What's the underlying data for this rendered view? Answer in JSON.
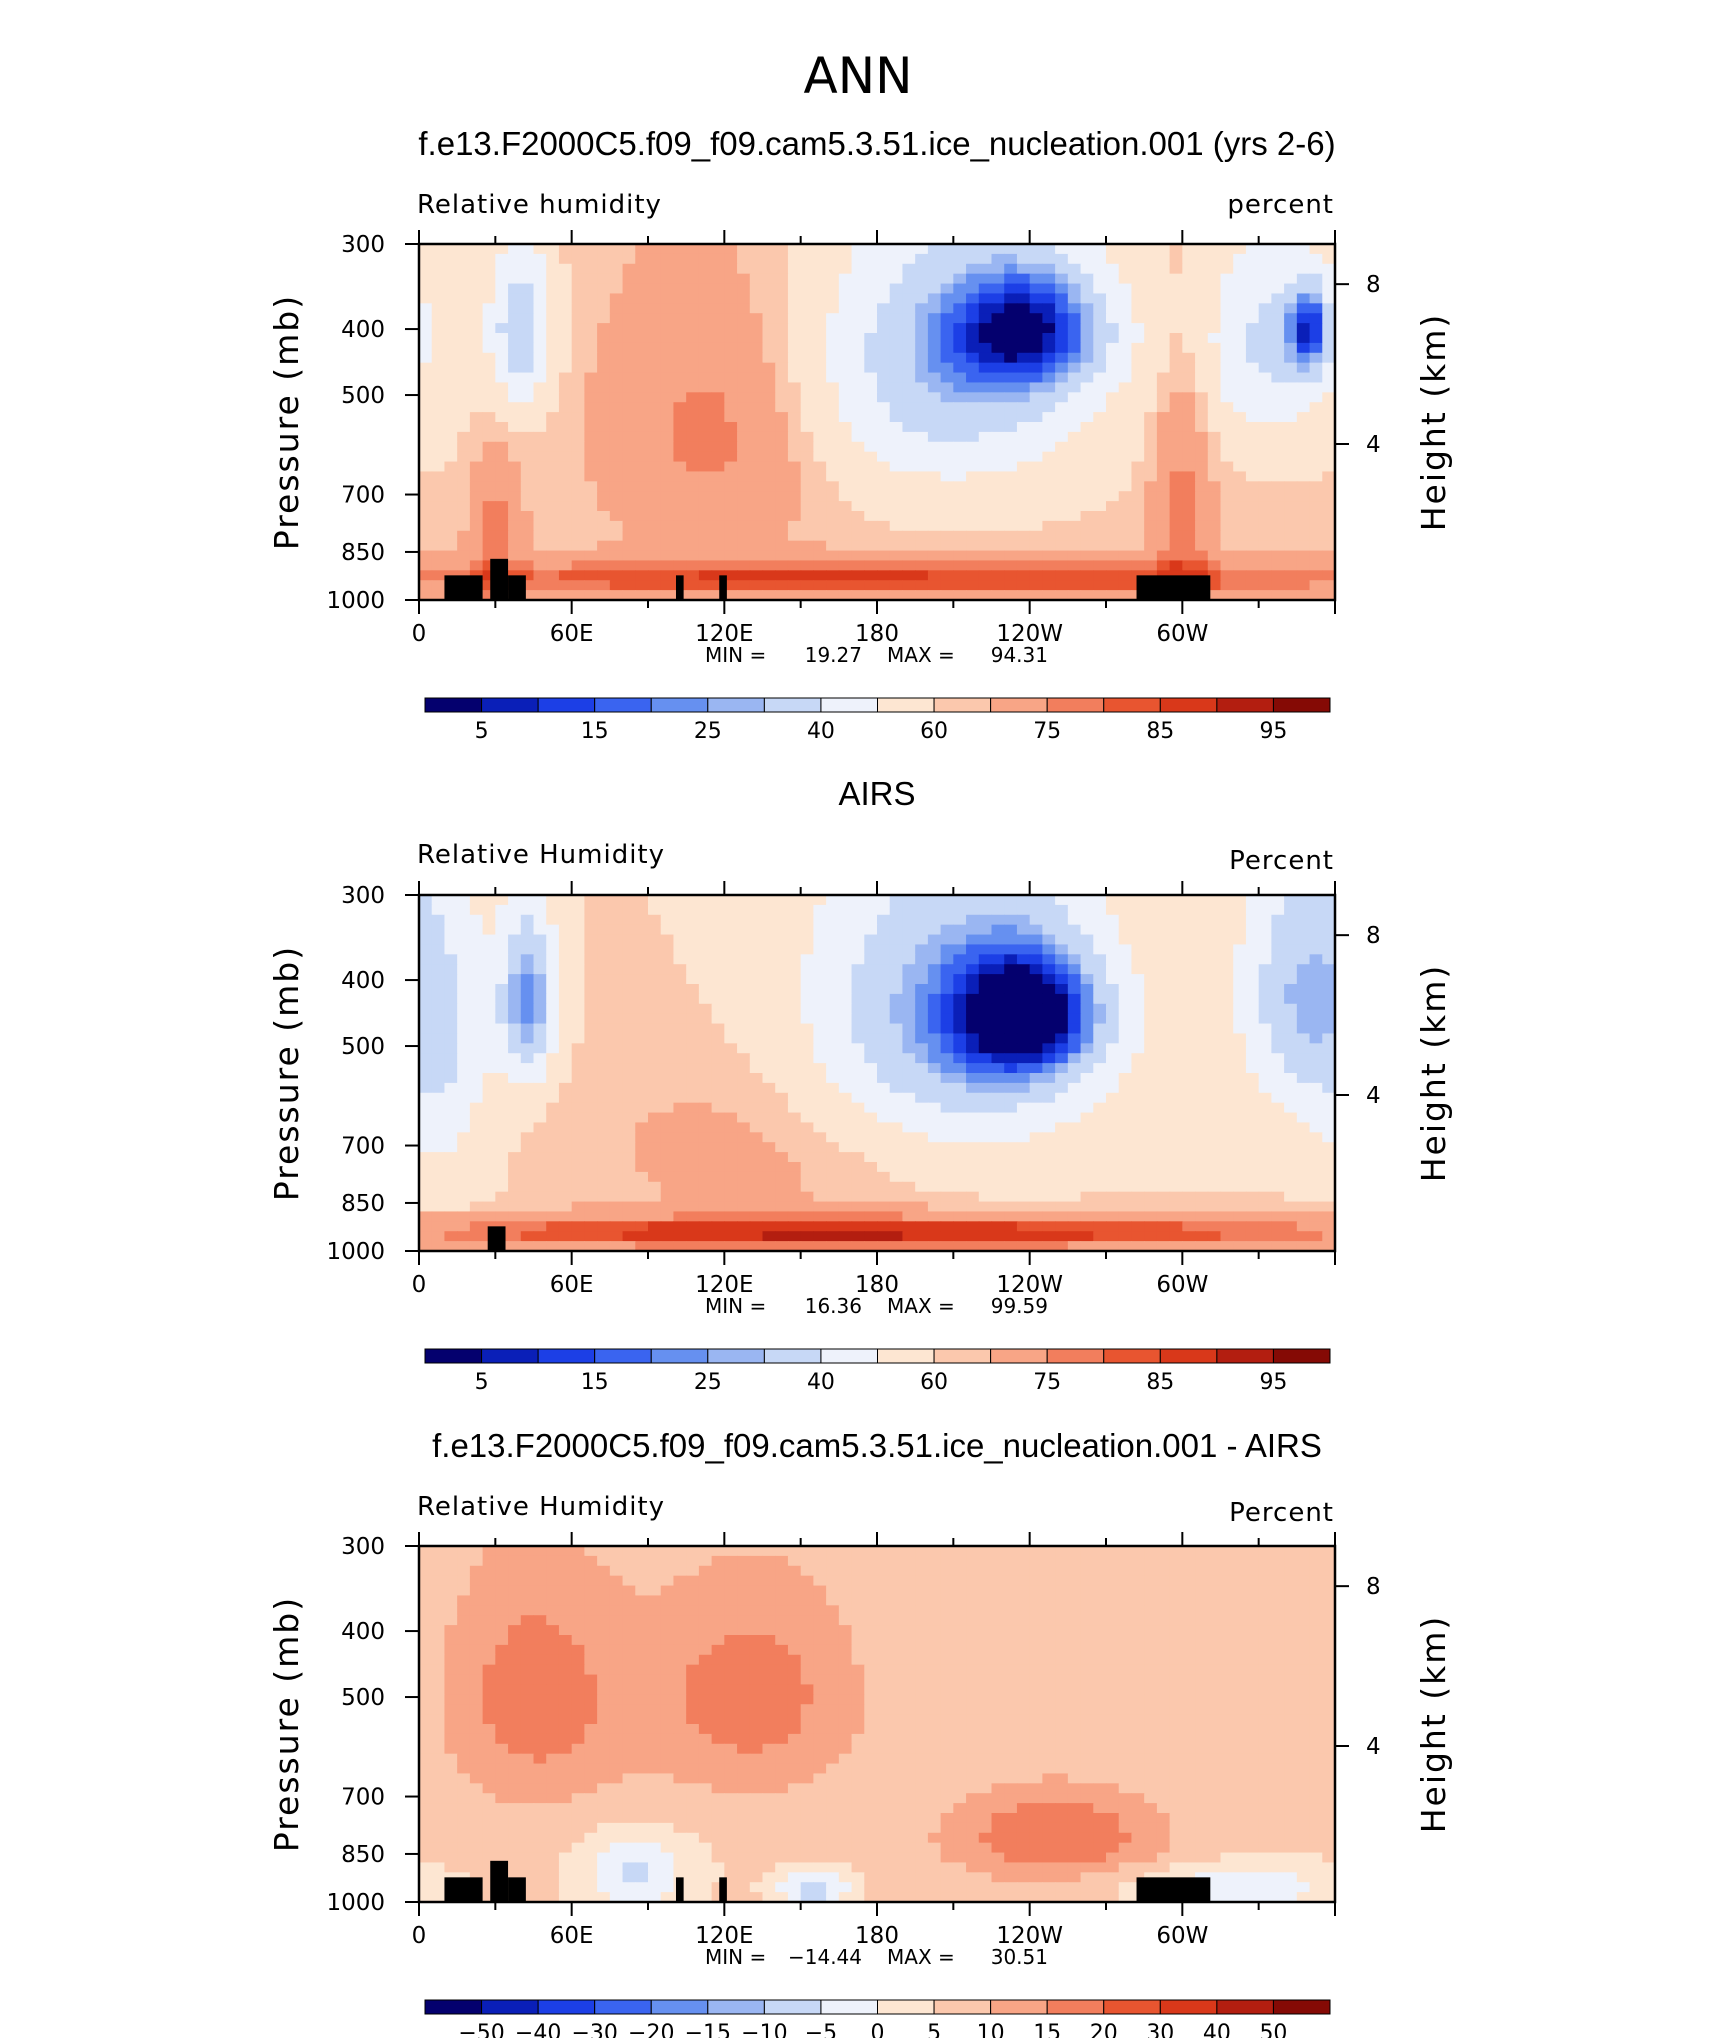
{
  "figure": {
    "title": "ANN"
  },
  "chart_data": [
    {
      "type": "heatmap",
      "title": "f.e13.F2000C5.f09_f09.cam5.3.51.ice_nucleation.001 (yrs 2-6)",
      "left_label": "Relative humidity",
      "right_label": "percent",
      "ylabel": "Pressure (mb)",
      "ylabel2": "Height (km)",
      "xticks": [
        "0",
        "60E",
        "120E",
        "180",
        "120W",
        "60W"
      ],
      "yticks": [
        "300",
        "400",
        "500",
        "700",
        "850",
        "1000"
      ],
      "y2ticks": [
        "8",
        "4"
      ],
      "stats": {
        "min_label": "MIN =",
        "min": "19.27",
        "max_label": "MAX =",
        "max": "94.31"
      },
      "colorbar_labels": [
        "5",
        "15",
        "25",
        "40",
        "60",
        "75",
        "85",
        "95"
      ],
      "colorbar_colors": [
        "#04006e",
        "#0a1fb8",
        "#1c3fe6",
        "#3a64f0",
        "#6690f0",
        "#9ab6f2",
        "#c7d8f6",
        "#eef2fb",
        "#fde6d2",
        "#fbc8ad",
        "#f8a586",
        "#f27e5d",
        "#e85530",
        "#d9381a",
        "#b31e10",
        "#850a05"
      ],
      "ylim": [
        1000,
        300
      ],
      "xlim": [
        0,
        360
      ],
      "blobs": [
        {
          "x": 20,
          "p": 550,
          "v": 60,
          "sx": 18,
          "sp": 150
        },
        {
          "x": 40,
          "p": 400,
          "v": 32,
          "sx": 9,
          "sp": 80
        },
        {
          "x": 30,
          "p": 780,
          "v": 78,
          "sx": 7,
          "sp": 140
        },
        {
          "x": 115,
          "p": 560,
          "v": 78,
          "sx": 28,
          "sp": 170
        },
        {
          "x": 210,
          "p": 450,
          "v": 30,
          "sx": 40,
          "sp": 150
        },
        {
          "x": 240,
          "p": 400,
          "v": 22,
          "sx": 22,
          "sp": 60
        },
        {
          "x": 300,
          "p": 700,
          "v": 78,
          "sx": 8,
          "sp": 220
        },
        {
          "x": 335,
          "p": 420,
          "v": 38,
          "sx": 20,
          "sp": 110
        },
        {
          "x": 350,
          "p": 400,
          "v": 25,
          "sx": 6,
          "sp": 40
        },
        {
          "x": 180,
          "p": 930,
          "v": 86,
          "sx": 170,
          "sp": 45
        }
      ],
      "base": 62,
      "topography": [
        [
          10,
          25,
          1000,
          920
        ],
        [
          28,
          35,
          1000,
          870
        ],
        [
          35,
          42,
          1000,
          920
        ],
        [
          101,
          104,
          1000,
          920
        ],
        [
          118,
          121,
          1000,
          920
        ],
        [
          282,
          311,
          1000,
          920
        ]
      ]
    },
    {
      "type": "heatmap",
      "title": "AIRS",
      "left_label": "Relative Humidity",
      "right_label": "Percent",
      "ylabel": "Pressure (mb)",
      "ylabel2": "Height (km)",
      "xticks": [
        "0",
        "60E",
        "120E",
        "180",
        "120W",
        "60W"
      ],
      "yticks": [
        "300",
        "400",
        "500",
        "700",
        "850",
        "1000"
      ],
      "y2ticks": [
        "8",
        "4"
      ],
      "stats": {
        "min_label": "MIN =",
        "min": "16.36",
        "max_label": "MAX =",
        "max": "99.59"
      },
      "colorbar_labels": [
        "5",
        "15",
        "25",
        "40",
        "60",
        "75",
        "85",
        "95"
      ],
      "colorbar_colors": [
        "#04006e",
        "#0a1fb8",
        "#1c3fe6",
        "#3a64f0",
        "#6690f0",
        "#9ab6f2",
        "#c7d8f6",
        "#eef2fb",
        "#fde6d2",
        "#fbc8ad",
        "#f8a586",
        "#f27e5d",
        "#e85530",
        "#d9381a",
        "#b31e10",
        "#850a05"
      ],
      "ylim": [
        1000,
        300
      ],
      "xlim": [
        0,
        360
      ],
      "blobs": [
        {
          "x": 10,
          "p": 500,
          "v": 42,
          "sx": 14,
          "sp": 200
        },
        {
          "x": 43,
          "p": 430,
          "v": 22,
          "sx": 8,
          "sp": 90
        },
        {
          "x": 210,
          "p": 460,
          "v": 24,
          "sx": 40,
          "sp": 170
        },
        {
          "x": 240,
          "p": 450,
          "v": 14,
          "sx": 20,
          "sp": 70
        },
        {
          "x": 345,
          "p": 420,
          "v": 32,
          "sx": 16,
          "sp": 130
        },
        {
          "x": 140,
          "p": 700,
          "v": 68,
          "sx": 60,
          "sp": 160
        },
        {
          "x": 180,
          "p": 940,
          "v": 90,
          "sx": 160,
          "sp": 40
        }
      ],
      "base": 60,
      "topography": [
        [
          27,
          34,
          1000,
          920
        ]
      ]
    },
    {
      "type": "heatmap",
      "title": "f.e13.F2000C5.f09_f09.cam5.3.51.ice_nucleation.001 - AIRS",
      "left_label": "Relative Humidity",
      "right_label": "Percent",
      "ylabel": "Pressure (mb)",
      "ylabel2": "Height (km)",
      "xticks": [
        "0",
        "60E",
        "120E",
        "180",
        "120W",
        "60W"
      ],
      "yticks": [
        "300",
        "400",
        "500",
        "700",
        "850",
        "1000"
      ],
      "y2ticks": [
        "8",
        "4"
      ],
      "stats": {
        "min_label": "MIN =",
        "min": "−14.44",
        "max_label": "MAX =",
        "max": "30.51"
      },
      "colorbar_labels": [
        "−50",
        "−40",
        "−30",
        "−20",
        "−15",
        "−10",
        "−5",
        "0",
        "5",
        "10",
        "15",
        "20",
        "30",
        "40",
        "50"
      ],
      "colorbar_colors": [
        "#04006e",
        "#0a1fb8",
        "#1c3fe6",
        "#3a64f0",
        "#6690f0",
        "#9ab6f2",
        "#c7d8f6",
        "#eef2fb",
        "#fde6d2",
        "#fbc8ad",
        "#f8a586",
        "#f27e5d",
        "#e85530",
        "#d9381a",
        "#b31e10",
        "#850a05"
      ],
      "ylim": [
        1000,
        300
      ],
      "xlim": [
        0,
        360
      ],
      "blobs": [
        {
          "x": 45,
          "p": 500,
          "v": 18,
          "sx": 25,
          "sp": 150
        },
        {
          "x": 130,
          "p": 500,
          "v": 18,
          "sx": 30,
          "sp": 130
        },
        {
          "x": 250,
          "p": 800,
          "v": 20,
          "sx": 30,
          "sp": 90
        },
        {
          "x": 85,
          "p": 900,
          "v": -6,
          "sx": 15,
          "sp": 80
        },
        {
          "x": 155,
          "p": 960,
          "v": -8,
          "sx": 10,
          "sp": 40
        },
        {
          "x": 320,
          "p": 950,
          "v": -4,
          "sx": 30,
          "sp": 50
        }
      ],
      "base": 6,
      "topography": [
        [
          10,
          25,
          1000,
          920
        ],
        [
          28,
          35,
          1000,
          870
        ],
        [
          35,
          42,
          1000,
          920
        ],
        [
          101,
          104,
          1000,
          920
        ],
        [
          118,
          121,
          1000,
          920
        ],
        [
          282,
          311,
          1000,
          920
        ]
      ]
    }
  ]
}
